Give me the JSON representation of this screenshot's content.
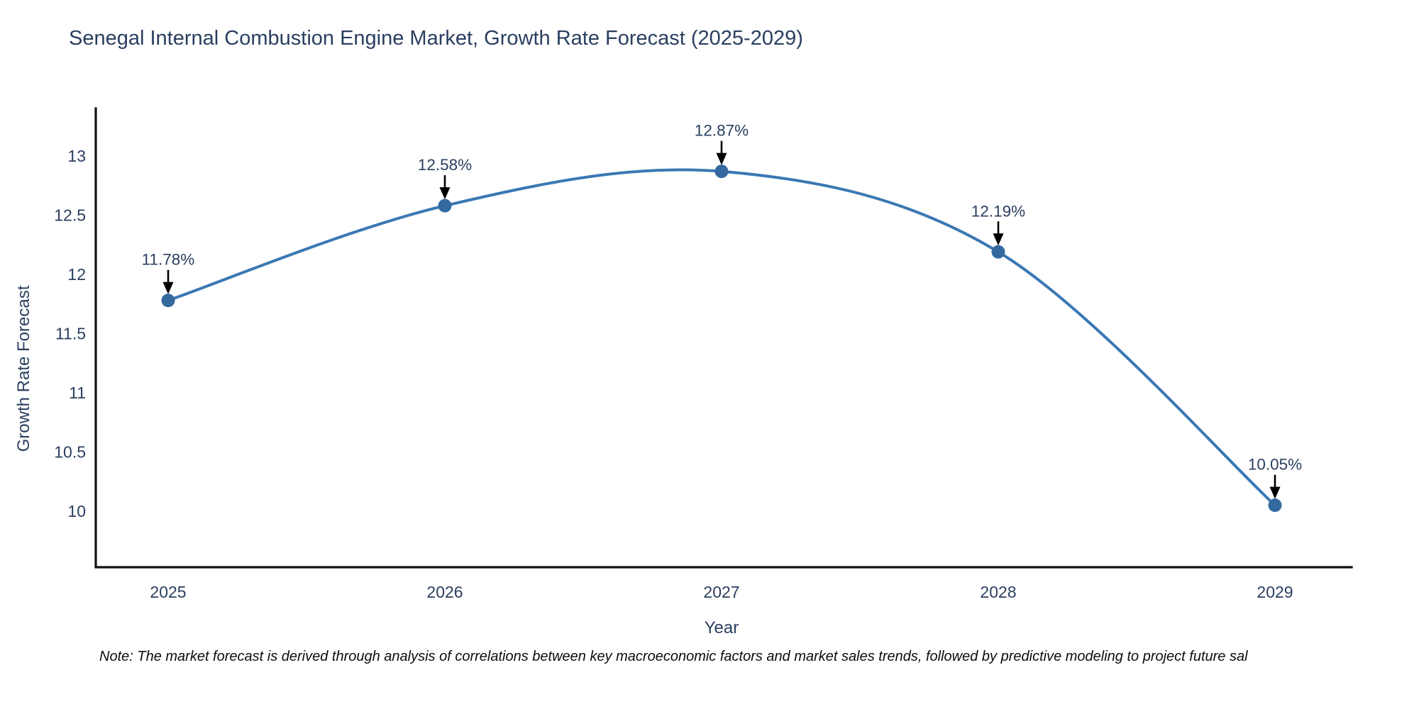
{
  "title": "Senegal Internal Combustion Engine Market, Growth Rate Forecast (2025-2029)",
  "note": "Note: The market forecast is derived through analysis of correlations between key macroeconomic factors and market sales trends, followed by predictive modeling to project future sal",
  "chart_data": {
    "type": "line",
    "title": "Senegal Internal Combustion Engine Market, Growth Rate Forecast (2025-2029)",
    "xlabel": "Year",
    "ylabel": "Growth Rate Forecast",
    "categories": [
      "2025",
      "2026",
      "2027",
      "2028",
      "2029"
    ],
    "values": [
      11.78,
      12.58,
      12.87,
      12.19,
      10.05
    ],
    "point_labels": [
      "11.78%",
      "12.58%",
      "12.87%",
      "12.19%",
      "10.05%"
    ],
    "ytick_values": [
      13,
      12.5,
      12,
      11.5,
      11,
      10.5,
      10
    ],
    "ytick_labels": [
      "13",
      "12.5",
      "12",
      "11.5",
      "11",
      "10.5",
      "10"
    ],
    "ylim": [
      9.53,
      13.4
    ],
    "line_shape": "spline",
    "grid": false,
    "legend_position": "none",
    "colors": {
      "line": "#3a78b3",
      "marker": "#33699f",
      "axis": "#111111",
      "tick_text": "#2a3f5f",
      "annotation_text": "#2a3f5f",
      "annotation_arrow": "#000000",
      "background": "#ffffff"
    }
  }
}
